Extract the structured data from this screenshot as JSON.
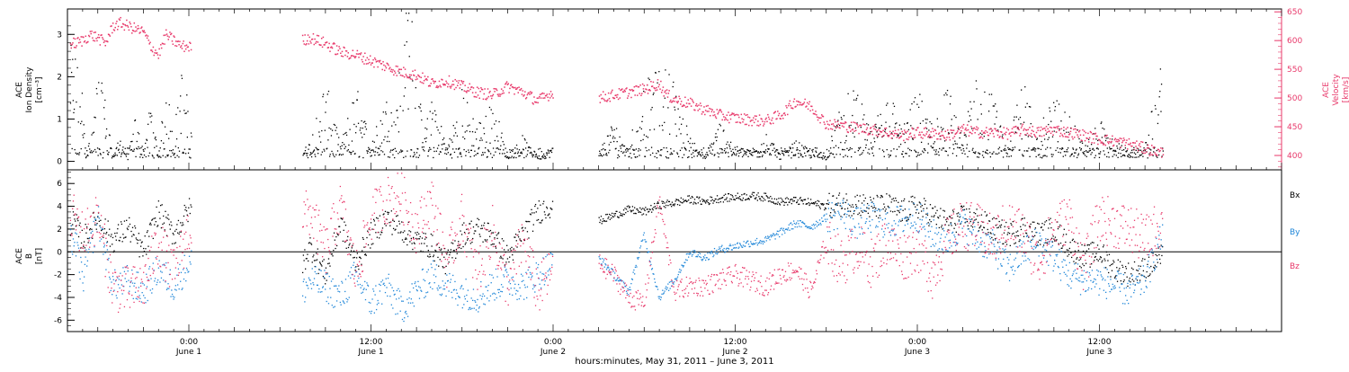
{
  "colors": {
    "black": "#000000",
    "pink": "#e8386a",
    "blue": "#1f86d8",
    "frame": "#000000"
  },
  "x_axis": {
    "title": "hours:minutes, May 31, 2011 – June  3, 2011",
    "ticks": [
      {
        "hours": 24,
        "time": "0:00",
        "date": "June 1"
      },
      {
        "hours": 36,
        "time": "12:00",
        "date": "June 1"
      },
      {
        "hours": 48,
        "time": "0:00",
        "date": "June 2"
      },
      {
        "hours": 60,
        "time": "12:00",
        "date": "June 2"
      },
      {
        "hours": 72,
        "time": "0:00",
        "date": "June 3"
      },
      {
        "hours": 84,
        "time": "12:00",
        "date": "June 3"
      }
    ]
  },
  "chart_data": [
    {
      "type": "scatter",
      "panel": "top",
      "left_axis_label": [
        "ACE",
        "Ion Density",
        "[cm⁻³]"
      ],
      "right_axis_label": [
        "ACE",
        "Velocity",
        "[km/s]"
      ],
      "left_ylim": [
        -0.2,
        3.6
      ],
      "left_ticks": [
        "0",
        "1",
        "2",
        "3"
      ],
      "right_ylim": [
        375,
        655
      ],
      "right_ticks": [
        "400",
        "450",
        "500",
        "550",
        "600",
        "650"
      ],
      "xlim_hours": [
        16,
        96
      ],
      "data_gaps_hours": [
        [
          24.2,
          31.5
        ],
        [
          48.0,
          51.0
        ]
      ],
      "series": [
        {
          "axis": "left",
          "color": "black",
          "x": [
            16.5,
            17,
            17.5,
            18,
            18.5,
            19,
            19.5,
            20,
            20.5,
            21,
            21.5,
            22,
            22.5,
            23,
            23.5,
            24,
            31.5,
            32,
            33,
            34,
            35,
            36,
            37,
            38,
            38.5,
            39,
            39.5,
            40,
            41,
            42,
            43,
            44,
            45,
            46,
            47,
            48,
            51,
            52,
            53,
            54,
            55,
            55.5,
            56,
            57,
            58,
            59,
            60,
            61,
            62,
            63,
            64,
            65,
            66,
            67,
            68,
            69,
            70,
            71,
            72,
            73,
            74,
            75,
            76,
            77,
            78,
            79,
            80,
            81,
            82,
            83,
            84,
            85,
            86,
            87,
            88
          ],
          "y": [
            2.2,
            1.4,
            0.2,
            1.8,
            1.2,
            0.1,
            0.5,
            0.1,
            0.9,
            0.2,
            1.2,
            0.1,
            1.6,
            0.5,
            1.8,
            1.1,
            0.2,
            0.4,
            1.6,
            0.3,
            1.5,
            0.4,
            1.2,
            1.9,
            3.5,
            1.8,
            0.5,
            1.5,
            0.3,
            1.4,
            0.7,
            1.3,
            0.1,
            0.5,
            0.1,
            0.3,
            0.2,
            0.8,
            0.4,
            1.5,
            1.8,
            2.0,
            1.5,
            0.5,
            0.1,
            0.8,
            0.3,
            0.2,
            0.6,
            0.1,
            0.4,
            0.2,
            0.1,
            1.2,
            1.4,
            0.5,
            1.6,
            0.6,
            1.4,
            0.8,
            1.5,
            0.4,
            2.0,
            1.2,
            0.4,
            1.6,
            0.6,
            1.3,
            1.0,
            0.3,
            0.8,
            0.4,
            0.2,
            0.3,
            1.8
          ]
        },
        {
          "axis": "right",
          "color": "pink",
          "x": [
            16.5,
            17,
            17.5,
            18,
            18.5,
            19,
            19.5,
            20,
            20.5,
            21,
            21.5,
            22,
            22.5,
            23,
            23.5,
            24,
            31.5,
            32,
            33,
            34,
            35,
            36,
            37,
            38,
            39,
            40,
            41,
            42,
            43,
            44,
            45,
            46,
            47,
            48,
            51,
            52,
            53,
            54,
            55,
            55.5,
            56,
            57,
            58,
            59,
            60,
            61,
            62,
            63,
            64,
            65,
            66,
            67,
            68,
            69,
            70,
            71,
            72,
            73,
            74,
            75,
            76,
            77,
            78,
            79,
            80,
            81,
            82,
            83,
            84,
            85,
            86,
            87,
            88
          ],
          "y": [
            595,
            600,
            610,
            605,
            595,
            625,
            630,
            625,
            620,
            615,
            590,
            575,
            610,
            600,
            590,
            590,
            600,
            605,
            595,
            580,
            575,
            565,
            555,
            545,
            540,
            525,
            530,
            520,
            510,
            505,
            520,
            510,
            495,
            510,
            500,
            505,
            510,
            515,
            525,
            505,
            498,
            490,
            480,
            470,
            465,
            462,
            460,
            470,
            495,
            485,
            455,
            452,
            448,
            445,
            440,
            435,
            440,
            438,
            435,
            445,
            440,
            440,
            438,
            445,
            440,
            445,
            440,
            435,
            428,
            425,
            420,
            412,
            405
          ]
        }
      ]
    },
    {
      "type": "scatter",
      "panel": "bottom",
      "left_axis_label": [
        "ACE",
        "B",
        "[nT]"
      ],
      "ylim": [
        -7,
        7.2
      ],
      "yticks": [
        "6",
        "4",
        "2",
        "0",
        "-2",
        "-4",
        "-6"
      ],
      "xlim_hours": [
        16,
        96
      ],
      "zero_line": 0,
      "legend": [
        "Bx",
        "By",
        "Bz"
      ],
      "legend_placement": "right",
      "series": [
        {
          "name": "Bx",
          "color": "black",
          "x": [
            16.5,
            17,
            18,
            19,
            20,
            21,
            22,
            23,
            24,
            31.5,
            32,
            33,
            34,
            35,
            36,
            37,
            38,
            39,
            40,
            41,
            42,
            43,
            44,
            45,
            46,
            47,
            48,
            51,
            52,
            53,
            54,
            55,
            56,
            57,
            58,
            59,
            60,
            61,
            62,
            63,
            64,
            65,
            66,
            67,
            68,
            69,
            70,
            71,
            72,
            73,
            74,
            75,
            76,
            77,
            78,
            79,
            80,
            81,
            82,
            83,
            84,
            85,
            86,
            87,
            88
          ],
          "y": [
            2.5,
            1.0,
            3.0,
            1.0,
            2.2,
            0.0,
            3.5,
            1.5,
            3.7,
            -1.0,
            0.5,
            -2.0,
            2.5,
            -1.0,
            1.5,
            3.0,
            2.0,
            1.0,
            0.5,
            -1.0,
            1.5,
            2.0,
            1.5,
            -0.5,
            1.5,
            3.5,
            4.2,
            2.7,
            3.2,
            3.7,
            3.5,
            4.1,
            4.3,
            4.6,
            4.4,
            4.7,
            4.8,
            4.9,
            4.8,
            4.4,
            4.5,
            4.3,
            4.0,
            4.2,
            4.3,
            3.8,
            4.1,
            3.5,
            4.0,
            3.2,
            2.5,
            3.0,
            2.8,
            2.0,
            1.5,
            2.2,
            1.5,
            2.0,
            0.5,
            -0.5,
            0.0,
            -1.5,
            -2.0,
            -1.5,
            -0.5
          ]
        },
        {
          "name": "By",
          "color": "blue",
          "x": [
            16.5,
            17,
            18,
            19,
            20,
            21,
            22,
            23,
            24,
            31.5,
            32,
            33,
            34,
            35,
            36,
            37,
            38,
            39,
            40,
            41,
            42,
            43,
            44,
            45,
            46,
            47,
            48,
            51,
            52,
            53,
            54,
            55,
            56,
            57,
            58,
            59,
            60,
            61,
            62,
            63,
            64,
            65,
            66,
            67,
            68,
            69,
            70,
            71,
            72,
            73,
            74,
            75,
            76,
            77,
            78,
            79,
            80,
            81,
            82,
            83,
            84,
            85,
            86,
            87,
            88
          ],
          "y": [
            1.0,
            -2.5,
            3.0,
            -3.0,
            -2.5,
            -3.5,
            -1.5,
            -3.0,
            -1.0,
            -3.5,
            -2.5,
            -3.0,
            -4.0,
            -2.0,
            -4.5,
            -3.0,
            -5.0,
            -3.5,
            -2.0,
            -3.0,
            -3.5,
            -4.0,
            -3.0,
            -2.5,
            -3.0,
            -2.0,
            -1.0,
            -0.5,
            -2.0,
            -3.5,
            1.5,
            -4.0,
            -2.5,
            0.0,
            -0.5,
            0.2,
            0.5,
            0.8,
            1.0,
            1.7,
            2.5,
            2.2,
            3.0,
            3.5,
            2.5,
            3.0,
            2.5,
            2.8,
            3.2,
            1.5,
            1.0,
            2.5,
            1.0,
            0.5,
            -1.5,
            0.0,
            1.0,
            -0.5,
            -2.0,
            -2.5,
            -2.5,
            -3.0,
            -3.5,
            -2.5,
            1.0
          ]
        },
        {
          "name": "Bz",
          "color": "pink",
          "x": [
            16.5,
            17,
            18,
            19,
            20,
            21,
            22,
            23,
            24,
            31.5,
            32,
            33,
            34,
            35,
            36,
            37,
            38,
            39,
            40,
            41,
            42,
            43,
            44,
            45,
            46,
            47,
            48,
            51,
            52,
            53,
            54,
            55,
            56,
            57,
            58,
            59,
            60,
            61,
            62,
            63,
            64,
            65,
            66,
            67,
            68,
            69,
            70,
            71,
            72,
            73,
            74,
            75,
            76,
            77,
            78,
            79,
            80,
            81,
            82,
            83,
            84,
            85,
            86,
            87,
            88
          ],
          "y": [
            3.0,
            1.5,
            3.0,
            -3.0,
            -3.5,
            -3.0,
            1.0,
            -2.0,
            2.0,
            3.0,
            3.5,
            0.0,
            4.0,
            -2.0,
            3.0,
            4.5,
            5.0,
            2.0,
            4.5,
            -1.0,
            3.0,
            -2.0,
            2.0,
            -3.0,
            1.0,
            -3.5,
            -1.5,
            -1.0,
            -2.0,
            -4.0,
            -4.5,
            4.5,
            -3.5,
            -3.0,
            -3.0,
            -2.5,
            -2.0,
            -2.5,
            -3.0,
            -2.0,
            -1.5,
            -3.5,
            1.0,
            -1.0,
            0.5,
            -1.0,
            1.0,
            -0.5,
            0.5,
            -2.0,
            1.0,
            2.5,
            2.0,
            1.0,
            2.5,
            1.5,
            -1.0,
            2.0,
            3.0,
            -1.5,
            3.0,
            2.5,
            2.0,
            1.0,
            2.5
          ]
        }
      ]
    }
  ]
}
